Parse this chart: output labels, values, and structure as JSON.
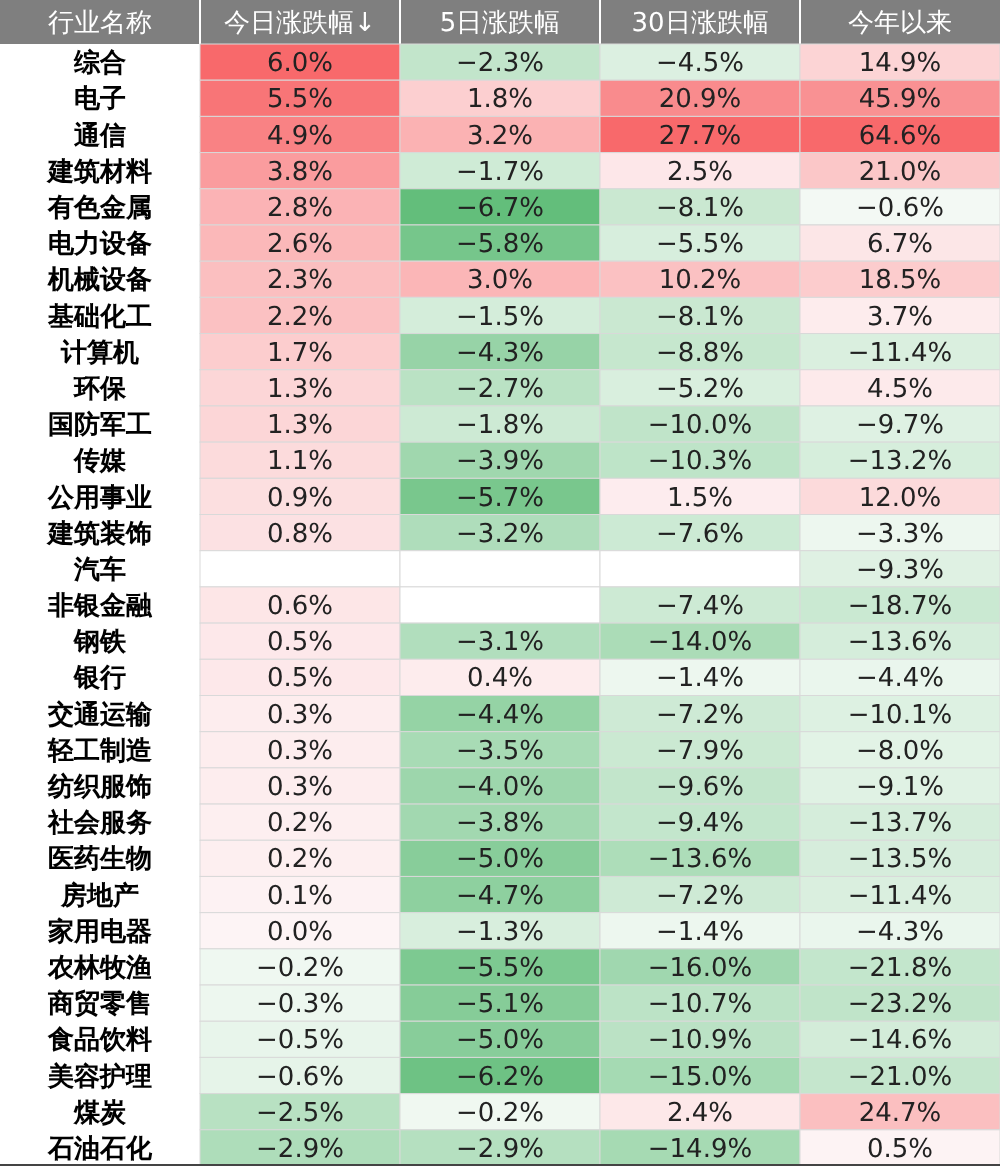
{
  "chart_data": {
    "type": "heatmap",
    "ylabel": "行业名称",
    "categories": [
      "今日涨跌幅↓",
      "5日涨跌幅",
      "30日涨跌幅",
      "今年以来"
    ],
    "y_categories": [
      "综合",
      "电子",
      "通信",
      "建筑材料",
      "有色金属",
      "电力设备",
      "机械设备",
      "基础化工",
      "计算机",
      "环保",
      "国防军工",
      "传媒",
      "公用事业",
      "建筑装饰",
      "汽车",
      "非银金融",
      "钢铁",
      "银行",
      "交通运输",
      "轻工制造",
      "纺织服饰",
      "社会服务",
      "医药生物",
      "房地产",
      "家用电器",
      "农林牧渔",
      "商贸零售",
      "食品饮料",
      "美容护理",
      "煤炭",
      "石油石化"
    ],
    "cells": [
      [
        6.0,
        -2.3,
        -4.5,
        14.9
      ],
      [
        5.5,
        1.8,
        20.9,
        45.9
      ],
      [
        4.9,
        3.2,
        27.7,
        64.6
      ],
      [
        3.8,
        -1.7,
        2.5,
        21.0
      ],
      [
        2.8,
        -6.7,
        -8.1,
        -0.6
      ],
      [
        2.6,
        -5.8,
        -5.5,
        6.7
      ],
      [
        2.3,
        3.0,
        10.2,
        18.5
      ],
      [
        2.2,
        -1.5,
        -8.1,
        3.7
      ],
      [
        1.7,
        -4.3,
        -8.8,
        -11.4
      ],
      [
        1.3,
        -2.7,
        -5.2,
        4.5
      ],
      [
        1.3,
        -1.8,
        -10.0,
        -9.7
      ],
      [
        1.1,
        -3.9,
        -10.3,
        -13.2
      ],
      [
        0.9,
        -5.7,
        1.5,
        12.0
      ],
      [
        0.8,
        -3.2,
        -7.6,
        -3.3
      ],
      [
        null,
        null,
        null,
        -9.3
      ],
      [
        0.6,
        null,
        -7.4,
        -18.7
      ],
      [
        0.5,
        -3.1,
        -14.0,
        -13.6
      ],
      [
        0.5,
        0.4,
        -1.4,
        -4.4
      ],
      [
        0.3,
        -4.4,
        -7.2,
        -10.1
      ],
      [
        0.3,
        -3.5,
        -7.9,
        -8.0
      ],
      [
        0.3,
        -4.0,
        -9.6,
        -9.1
      ],
      [
        0.2,
        -3.8,
        -9.4,
        -13.7
      ],
      [
        0.2,
        -5.0,
        -13.6,
        -13.5
      ],
      [
        0.1,
        -4.7,
        -7.2,
        -11.4
      ],
      [
        0.0,
        -1.3,
        -1.4,
        -4.3
      ],
      [
        -0.2,
        -5.5,
        -16.0,
        -21.8
      ],
      [
        -0.3,
        -5.1,
        -10.7,
        -23.2
      ],
      [
        -0.5,
        -5.0,
        -10.9,
        -14.6
      ],
      [
        -0.6,
        -6.2,
        -15.0,
        -21.0
      ],
      [
        -2.5,
        -0.2,
        2.4,
        24.7
      ],
      [
        -2.9,
        -2.9,
        -14.9,
        0.5
      ]
    ],
    "cell_labels": [
      [
        "6.0%",
        "−2.3%",
        "−4.5%",
        "14.9%"
      ],
      [
        "5.5%",
        "1.8%",
        "20.9%",
        "45.9%"
      ],
      [
        "4.9%",
        "3.2%",
        "27.7%",
        "64.6%"
      ],
      [
        "3.8%",
        "−1.7%",
        "2.5%",
        "21.0%"
      ],
      [
        "2.8%",
        "−6.7%",
        "−8.1%",
        "−0.6%"
      ],
      [
        "2.6%",
        "−5.8%",
        "−5.5%",
        "6.7%"
      ],
      [
        "2.3%",
        "3.0%",
        "10.2%",
        "18.5%"
      ],
      [
        "2.2%",
        "−1.5%",
        "−8.1%",
        "3.7%"
      ],
      [
        "1.7%",
        "−4.3%",
        "−8.8%",
        "−11.4%"
      ],
      [
        "1.3%",
        "−2.7%",
        "−5.2%",
        "4.5%"
      ],
      [
        "1.3%",
        "−1.8%",
        "−10.0%",
        "−9.7%"
      ],
      [
        "1.1%",
        "−3.9%",
        "−10.3%",
        "−13.2%"
      ],
      [
        "0.9%",
        "−5.7%",
        "1.5%",
        "12.0%"
      ],
      [
        "0.8%",
        "−3.2%",
        "−7.6%",
        "−3.3%"
      ],
      [
        null,
        null,
        null,
        "−9.3%"
      ],
      [
        "0.6%",
        null,
        "−7.4%",
        "−18.7%"
      ],
      [
        "0.5%",
        "−3.1%",
        "−14.0%",
        "−13.6%"
      ],
      [
        "0.5%",
        "0.4%",
        "−1.4%",
        "−4.4%"
      ],
      [
        "0.3%",
        "−4.4%",
        "−7.2%",
        "−10.1%"
      ],
      [
        "0.3%",
        "−3.5%",
        "−7.9%",
        "−8.0%"
      ],
      [
        "0.3%",
        "−4.0%",
        "−9.6%",
        "−9.1%"
      ],
      [
        "0.2%",
        "−3.8%",
        "−9.4%",
        "−13.7%"
      ],
      [
        "0.2%",
        "−5.0%",
        "−13.6%",
        "−13.5%"
      ],
      [
        "0.1%",
        "−4.7%",
        "−7.2%",
        "−11.4%"
      ],
      [
        "0.0%",
        "−1.3%",
        "−1.4%",
        "−4.3%"
      ],
      [
        "−0.2%",
        "−5.5%",
        "−16.0%",
        "−21.8%"
      ],
      [
        "−0.3%",
        "−5.1%",
        "−10.7%",
        "−23.2%"
      ],
      [
        "−0.5%",
        "−5.0%",
        "−10.9%",
        "−14.6%"
      ],
      [
        "−0.6%",
        "−6.2%",
        "−15.0%",
        "−21.0%"
      ],
      [
        "−2.5%",
        "−0.2%",
        "2.4%",
        "24.7%"
      ],
      [
        "−2.9%",
        "−2.9%",
        "−14.9%",
        "0.5%"
      ]
    ]
  }
}
